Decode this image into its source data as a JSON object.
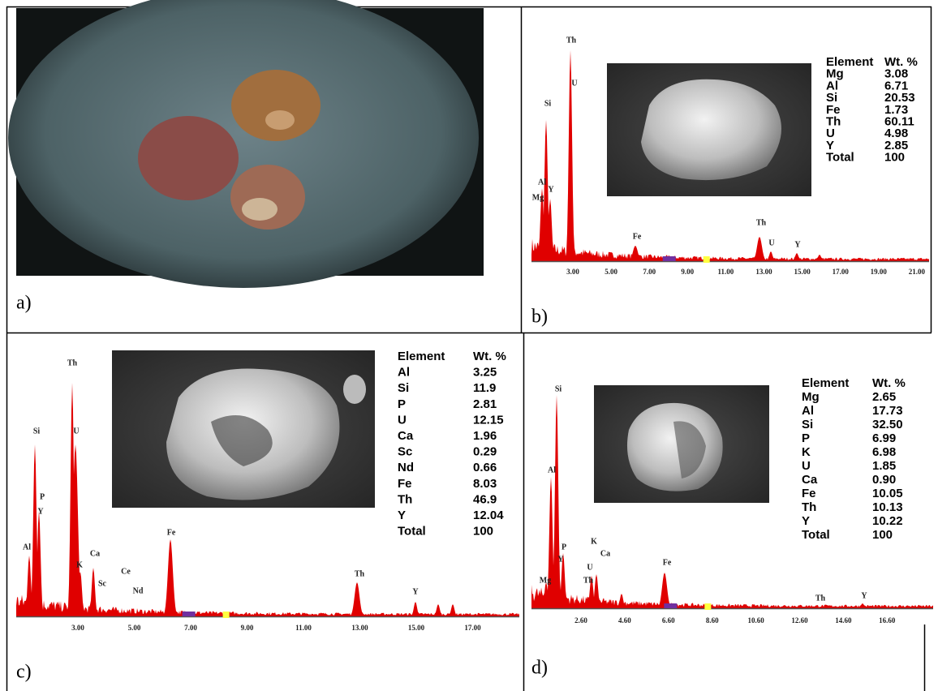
{
  "panels": [
    {
      "label": "a)"
    },
    {
      "label": "b)",
      "peaks": [
        "Th",
        "Si",
        "U",
        "Al",
        "Y",
        "Mg",
        "Fe",
        "Th",
        "U",
        "Y"
      ],
      "ticks": [
        "3.00",
        "5.00",
        "7.00",
        "9.00",
        "11.00",
        "13.00",
        "15.00",
        "17.00",
        "19.00",
        "21.00"
      ],
      "table": {
        "header": [
          "Element",
          "Wt. %"
        ],
        "rows": [
          [
            "Mg",
            "3.08"
          ],
          [
            "Al",
            "6.71"
          ],
          [
            "Si",
            "20.53"
          ],
          [
            "Fe",
            "1.73"
          ],
          [
            "Th",
            "60.11"
          ],
          [
            "U",
            "4.98"
          ],
          [
            "Y",
            "2.85"
          ],
          [
            "Total",
            "100"
          ]
        ]
      }
    },
    {
      "label": "c)",
      "peaks": [
        "Th",
        "Si",
        "U",
        "P",
        "Y",
        "Al",
        "K",
        "Ca",
        "Sc",
        "Ce",
        "Nd",
        "Fe",
        "Th",
        "Y"
      ],
      "ticks": [
        "3.00",
        "5.00",
        "7.00",
        "9.00",
        "11.00",
        "13.00",
        "15.00",
        "17.00"
      ],
      "table": {
        "header": [
          "Element",
          "Wt. %"
        ],
        "rows": [
          [
            "Al",
            "3.25"
          ],
          [
            "Si",
            "11.9"
          ],
          [
            "P",
            "2.81"
          ],
          [
            "U",
            "12.15"
          ],
          [
            "Ca",
            "1.96"
          ],
          [
            "Sc",
            "0.29"
          ],
          [
            "Nd",
            "0.66"
          ],
          [
            "Fe",
            "8.03"
          ],
          [
            "Th",
            "46.9"
          ],
          [
            "Y",
            "12.04"
          ],
          [
            "Total",
            "100"
          ]
        ]
      }
    },
    {
      "label": "d)",
      "peaks": [
        "Si",
        "Al",
        "K",
        "Ca",
        "P",
        "Y",
        "U",
        "Th",
        "Mg",
        "Fe",
        "Th",
        "Y"
      ],
      "ticks": [
        "2.60",
        "4.60",
        "6.60",
        "8.60",
        "10.60",
        "12.60",
        "14.60",
        "16.60"
      ],
      "table": {
        "header": [
          "Element",
          "Wt. %"
        ],
        "rows": [
          [
            "Mg",
            "2.65"
          ],
          [
            "Al",
            "17.73"
          ],
          [
            "Si",
            "32.50"
          ],
          [
            "P",
            "6.99"
          ],
          [
            "K",
            "6.98"
          ],
          [
            "U",
            "1.85"
          ],
          [
            "Ca",
            "0.90"
          ],
          [
            "Fe",
            "10.05"
          ],
          [
            "Th",
            "10.13"
          ],
          [
            "Y",
            "10.22"
          ],
          [
            "Total",
            "100"
          ]
        ]
      }
    }
  ]
}
